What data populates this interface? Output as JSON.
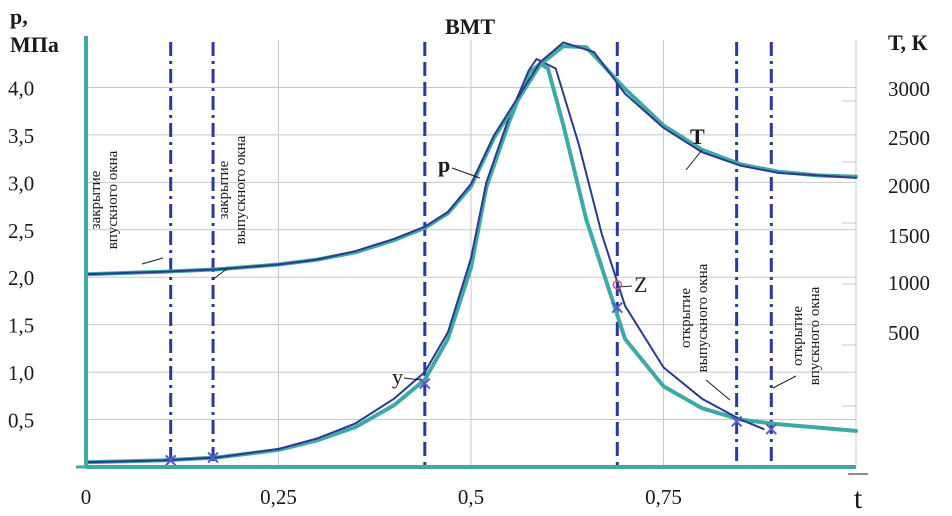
{
  "chart_data": {
    "type": "line",
    "title": "ВМТ",
    "xlabel": "t",
    "ylabel_left": [
      "p,",
      "МПа"
    ],
    "ylabel_right": "Т, К",
    "xlim": [
      0,
      1
    ],
    "ylim_left": [
      0,
      4.5
    ],
    "ylim_right": [
      0,
      3500
    ],
    "x_ticks": [
      {
        "value": 0,
        "label": "0"
      },
      {
        "value": 0.25,
        "label": "0,25"
      },
      {
        "value": 0.5,
        "label": "0,5"
      },
      {
        "value": 0.75,
        "label": "0,75"
      }
    ],
    "y_ticks_left": [
      {
        "value": 0.5,
        "label": "0,5"
      },
      {
        "value": 1.0,
        "label": "1,0"
      },
      {
        "value": 1.5,
        "label": "1,5"
      },
      {
        "value": 2.0,
        "label": "2,0"
      },
      {
        "value": 2.5,
        "label": "2,5"
      },
      {
        "value": 3.0,
        "label": "3,0"
      },
      {
        "value": 3.5,
        "label": "3,5"
      },
      {
        "value": 4.0,
        "label": "4,0"
      }
    ],
    "y_ticks_right": [
      {
        "value": 500,
        "label": "500"
      },
      {
        "value": 1000,
        "label": "1000"
      },
      {
        "value": 1500,
        "label": "1500"
      },
      {
        "value": 2000,
        "label": "2000"
      },
      {
        "value": 2500,
        "label": "2500"
      },
      {
        "value": 3000,
        "label": "3000"
      }
    ],
    "grid": true,
    "series": [
      {
        "name": "p",
        "axis": "left",
        "color": "#3fa9a5",
        "x": [
          0,
          0.1,
          0.17,
          0.25,
          0.3,
          0.35,
          0.4,
          0.44,
          0.47,
          0.5,
          0.52,
          0.55,
          0.575,
          0.59,
          0.6,
          0.62,
          0.65,
          0.7,
          0.75,
          0.8,
          0.85,
          0.9,
          1.0
        ],
        "y": [
          0.05,
          0.07,
          0.1,
          0.18,
          0.28,
          0.42,
          0.65,
          0.92,
          1.35,
          2.1,
          2.95,
          3.65,
          4.15,
          4.25,
          4.2,
          3.6,
          2.6,
          1.35,
          0.85,
          0.62,
          0.5,
          0.45,
          0.38
        ]
      },
      {
        "name": "p",
        "axis": "left",
        "color": "#2b3a8f",
        "x": [
          0,
          0.1,
          0.17,
          0.25,
          0.3,
          0.35,
          0.4,
          0.44,
          0.47,
          0.5,
          0.52,
          0.55,
          0.575,
          0.585,
          0.61,
          0.64,
          0.67,
          0.7,
          0.75,
          0.8,
          0.85,
          0.88
        ],
        "y": [
          0.05,
          0.07,
          0.1,
          0.19,
          0.3,
          0.46,
          0.72,
          1.0,
          1.42,
          2.2,
          3.0,
          3.7,
          4.18,
          4.3,
          4.2,
          3.4,
          2.45,
          1.7,
          1.05,
          0.72,
          0.5,
          0.4
        ]
      },
      {
        "name": "T",
        "axis": "right",
        "color": "#3fa9a5",
        "x": [
          0,
          0.1,
          0.17,
          0.25,
          0.3,
          0.35,
          0.4,
          0.44,
          0.47,
          0.5,
          0.53,
          0.56,
          0.59,
          0.62,
          0.65,
          0.7,
          0.75,
          0.8,
          0.85,
          0.9,
          0.95,
          1.0
        ],
        "y": [
          1580,
          1600,
          1620,
          1660,
          1700,
          1760,
          1860,
          1960,
          2080,
          2300,
          2700,
          3000,
          3300,
          3450,
          3440,
          3100,
          2800,
          2600,
          2480,
          2420,
          2390,
          2380
        ]
      },
      {
        "name": "T",
        "axis": "right",
        "color": "#2b3a8f",
        "x": [
          0,
          0.1,
          0.17,
          0.25,
          0.3,
          0.35,
          0.4,
          0.44,
          0.47,
          0.5,
          0.53,
          0.56,
          0.59,
          0.62,
          0.66,
          0.7,
          0.75,
          0.8,
          0.85,
          0.9,
          0.95,
          1.0
        ],
        "y": [
          1580,
          1600,
          1620,
          1660,
          1700,
          1770,
          1870,
          1970,
          2090,
          2320,
          2720,
          3020,
          3320,
          3480,
          3400,
          3060,
          2780,
          2580,
          2470,
          2410,
          2390,
          2370
        ]
      }
    ],
    "vertical_lines": [
      {
        "x": 0.11,
        "style": "dashdot",
        "label": "закрытие впускного окна"
      },
      {
        "x": 0.165,
        "style": "dashdot",
        "label": "закрытие выпускного окна"
      },
      {
        "x": 0.44,
        "style": "dashed",
        "label": ""
      },
      {
        "x": 0.69,
        "style": "dashed",
        "label": ""
      },
      {
        "x": 0.845,
        "style": "dashdot",
        "label": "открытие выпускного окна"
      },
      {
        "x": 0.89,
        "style": "dashdot",
        "label": "открытие впускного окна"
      }
    ],
    "markers": [
      {
        "x": 0.11,
        "y": 0.07
      },
      {
        "x": 0.165,
        "y": 0.1
      },
      {
        "x": 0.44,
        "y": 0.88
      },
      {
        "x": 0.69,
        "y": 1.68
      },
      {
        "x": 0.845,
        "y": 0.48
      },
      {
        "x": 0.89,
        "y": 0.4
      }
    ],
    "annotations": [
      {
        "text": "p",
        "bold": true,
        "at_x": 0.535,
        "at_y": 3.1
      },
      {
        "text": "T",
        "bold": true,
        "at_x": 0.765,
        "at_y": 3.5
      },
      {
        "text": "y",
        "bold": false,
        "at_x": 0.44,
        "at_y": 1.0
      },
      {
        "text": "Z",
        "bold": false,
        "at_x": 0.69,
        "at_y": 1.92
      }
    ]
  }
}
